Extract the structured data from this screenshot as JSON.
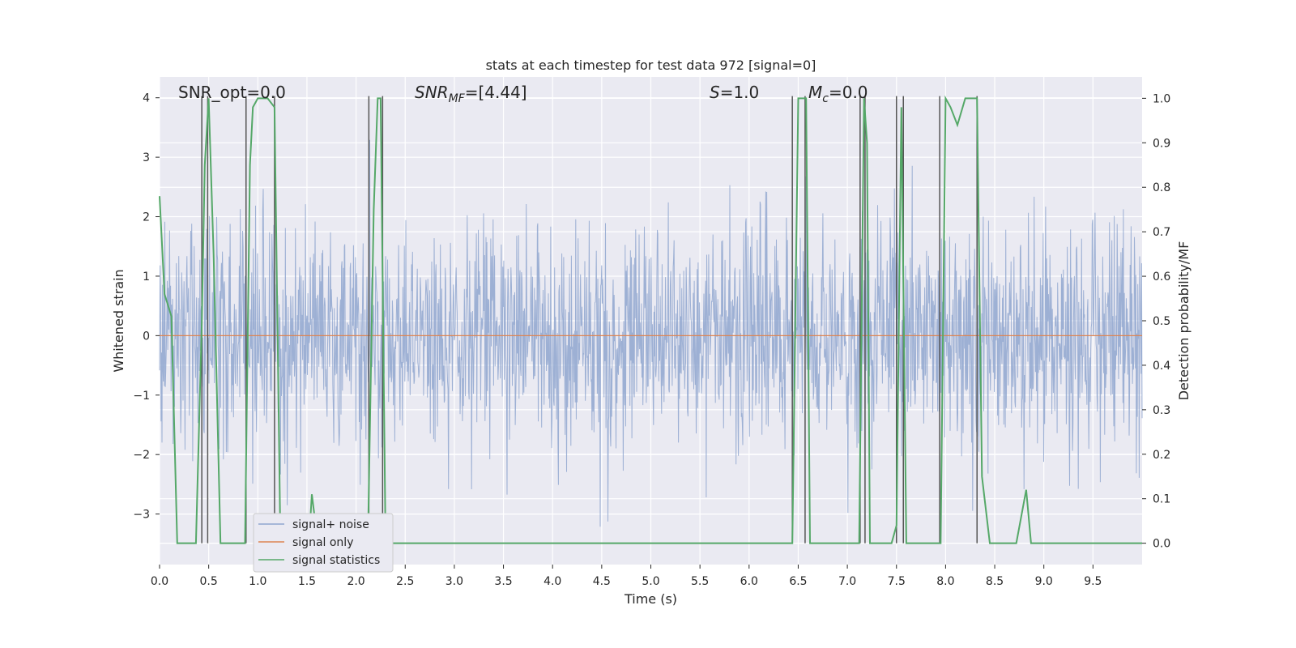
{
  "chart_data": {
    "type": "line",
    "title": "stats at each timestep for test data 972 [signal=0]",
    "xlabel": "Time (s)",
    "ylabel": "Whitened strain",
    "y2label": "Detection probability/MF",
    "xlim": [
      0.0,
      10.0
    ],
    "ylim": [
      -3.85,
      4.35
    ],
    "y2lim": [
      -0.048,
      1.048
    ],
    "x_ticks": [
      0.0,
      0.5,
      1.0,
      1.5,
      2.0,
      2.5,
      3.0,
      3.5,
      4.0,
      4.5,
      5.0,
      5.5,
      6.0,
      6.5,
      7.0,
      7.5,
      8.0,
      8.5,
      9.0,
      9.5
    ],
    "x_tick_labels": [
      "0.0",
      "0.5",
      "1.0",
      "1.5",
      "2.0",
      "2.5",
      "3.0",
      "3.5",
      "4.0",
      "4.5",
      "5.0",
      "5.5",
      "6.0",
      "6.5",
      "7.0",
      "7.5",
      "8.0",
      "8.5",
      "9.0",
      "9.5"
    ],
    "y_ticks": [
      4,
      3,
      2,
      1,
      0,
      -1,
      -2,
      -3
    ],
    "y_tick_labels": [
      "4",
      "3",
      "2",
      "1",
      "0",
      "−1",
      "−2",
      "−3"
    ],
    "y2_ticks": [
      1.0,
      0.9,
      0.8,
      0.7,
      0.6,
      0.5,
      0.4,
      0.3,
      0.2,
      0.1,
      0.0
    ],
    "y2_tick_labels": [
      "1.0",
      "0.9",
      "0.8",
      "0.7",
      "0.6",
      "0.5",
      "0.4",
      "0.3",
      "0.2",
      "0.1",
      "0.0"
    ],
    "grid": true,
    "legend_position": "lower-left",
    "annotations": {
      "snr_opt": "SNR_opt=0.0",
      "snr_mf_label": "SNR",
      "snr_mf_sub": "MF",
      "snr_mf_value": "=[4.44]",
      "s_label": "S",
      "s_value": "=1.0",
      "mc_label": "M",
      "mc_sub": "c",
      "mc_value": "=0.0"
    },
    "series": [
      {
        "name": "signal+ noise",
        "color": "#8fa6cf",
        "noise_sigma": 0.95,
        "n_samples": 2048
      },
      {
        "name": "signal only",
        "color": "#dd8452",
        "constant": 0.0
      },
      {
        "name": "signal statistics",
        "color": "#55a868",
        "axis": "right",
        "x": [
          0.0,
          0.05,
          0.12,
          0.18,
          0.25,
          0.37,
          0.43,
          0.46,
          0.5,
          0.55,
          0.62,
          0.87,
          0.92,
          0.95,
          1.0,
          1.1,
          1.17,
          1.23,
          1.3,
          1.52,
          1.55,
          1.6,
          2.12,
          2.18,
          2.22,
          2.25,
          2.3,
          2.35,
          6.44,
          6.5,
          6.58,
          6.62,
          6.7,
          7.12,
          7.17,
          7.2,
          7.23,
          7.28,
          7.45,
          7.5,
          7.55,
          7.6,
          7.62,
          7.75,
          7.95,
          8.0,
          8.05,
          8.12,
          8.2,
          8.32,
          8.37,
          8.45,
          8.72,
          8.82,
          8.87,
          10.0
        ],
        "y": [
          0.78,
          0.56,
          0.51,
          0.0,
          0.0,
          0.0,
          0.5,
          0.85,
          1.0,
          0.65,
          0.0,
          0.0,
          0.85,
          0.98,
          1.0,
          1.0,
          0.98,
          0.0,
          0.0,
          0.0,
          0.11,
          0.02,
          0.0,
          0.75,
          1.0,
          1.0,
          0.0,
          0.0,
          0.0,
          1.0,
          1.0,
          0.0,
          0.0,
          0.0,
          1.0,
          0.9,
          0.0,
          0.0,
          0.0,
          0.04,
          0.98,
          0.0,
          0.0,
          0.0,
          0.0,
          1.0,
          0.98,
          0.94,
          1.0,
          1.0,
          0.15,
          0.0,
          0.0,
          0.12,
          0.0,
          0.0
        ]
      }
    ],
    "vertical_markers": [
      0.43,
      0.49,
      0.88,
      1.17,
      2.13,
      2.27,
      6.44,
      6.57,
      7.13,
      7.18,
      7.5,
      7.57,
      7.94,
      8.32
    ],
    "marker_color": "#555555"
  }
}
